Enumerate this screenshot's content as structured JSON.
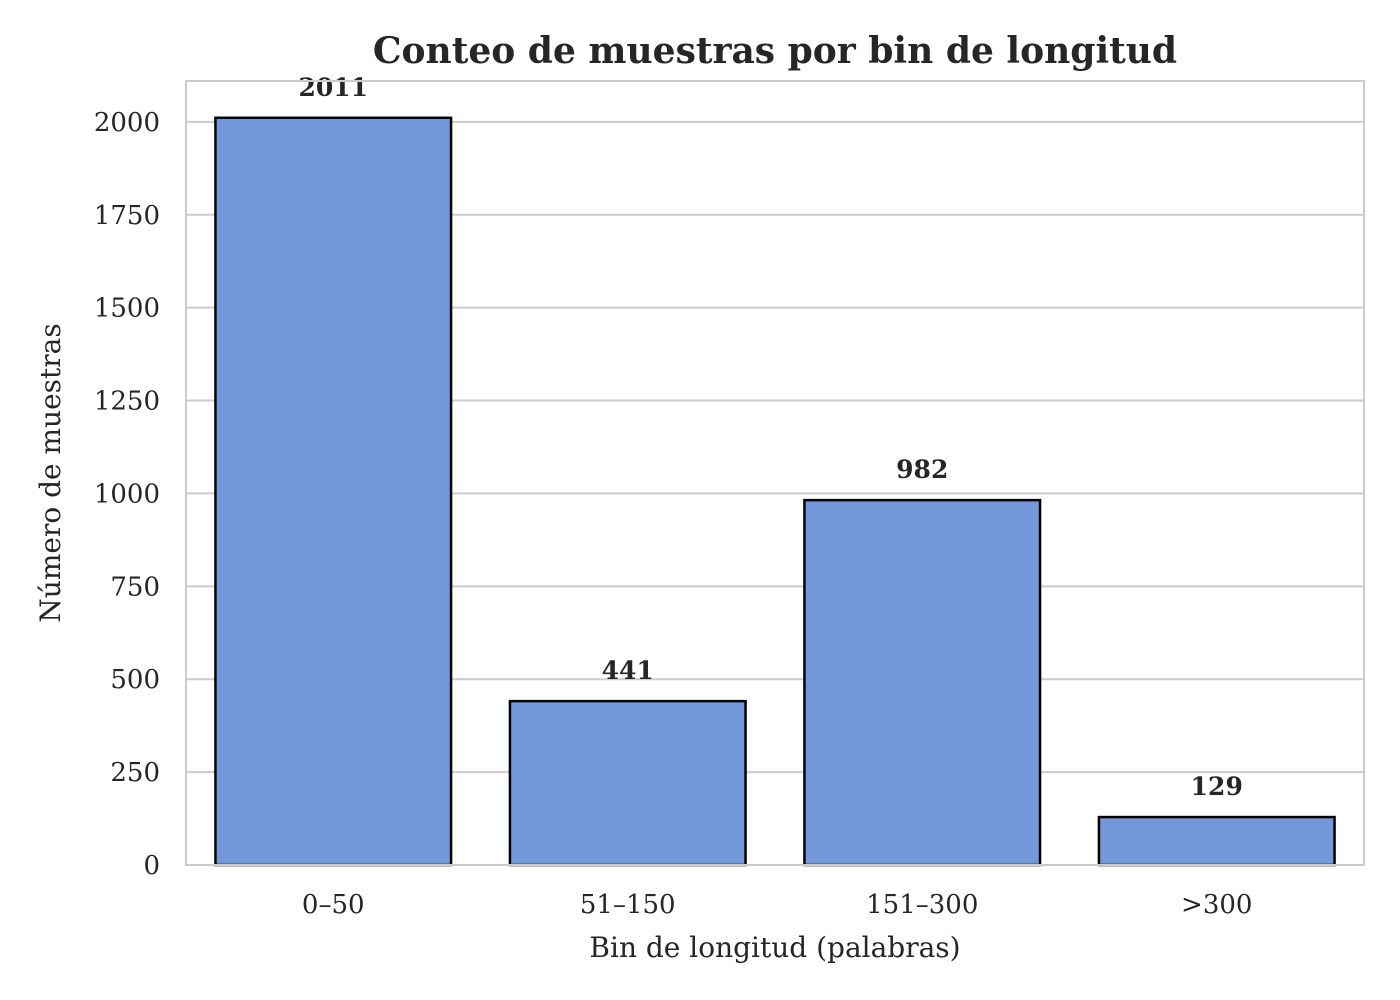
{
  "chart_data": {
    "type": "bar",
    "title": "Conteo de muestras por bin de longitud",
    "xlabel": "Bin de longitud (palabras)",
    "ylabel": "Número de muestras",
    "categories": [
      "0–50",
      "51–150",
      "151–300",
      ">300"
    ],
    "values": [
      2011,
      441,
      982,
      129
    ],
    "data_labels": [
      "2011",
      "441",
      "982",
      "129"
    ],
    "ylim": [
      0,
      2110
    ],
    "yticks": [
      0,
      250,
      500,
      750,
      1000,
      1250,
      1500,
      1750,
      2000
    ],
    "ytick_labels": [
      "0",
      "250",
      "500",
      "750",
      "1000",
      "1250",
      "1500",
      "1750",
      "2000"
    ],
    "grid": "horizontal",
    "bar_color": "#7499db",
    "edge_color": "#000000"
  }
}
